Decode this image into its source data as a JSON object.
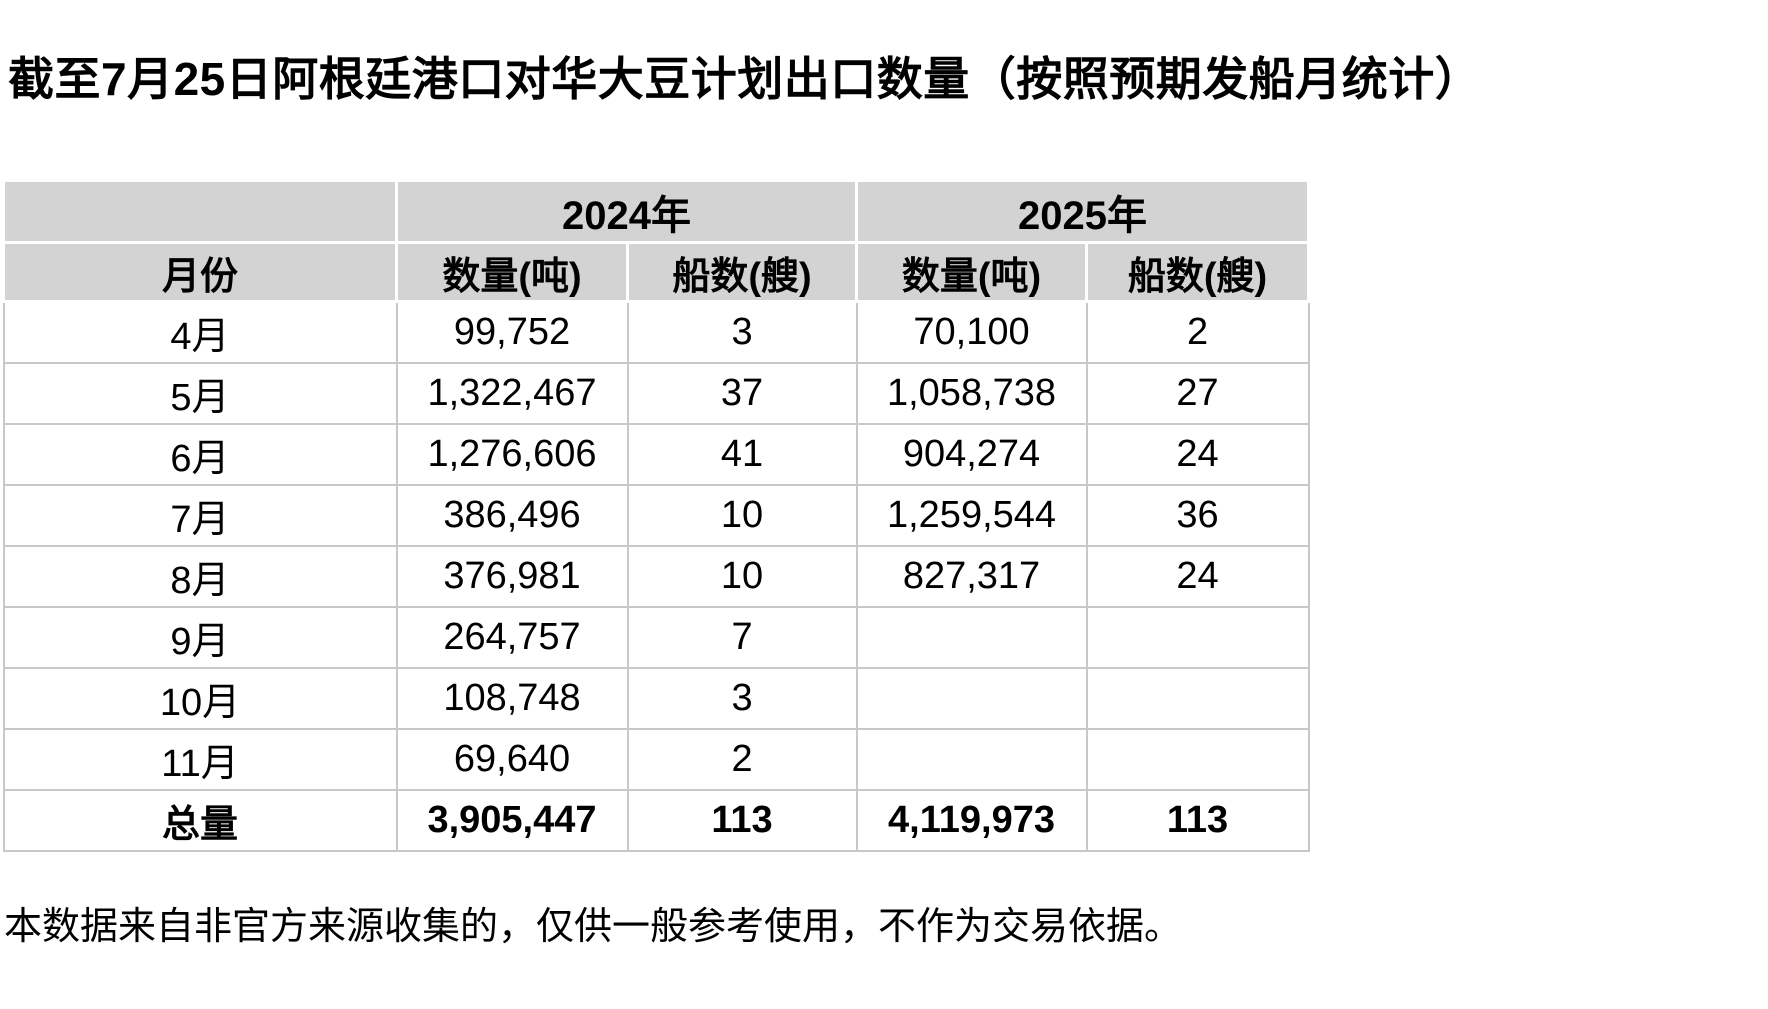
{
  "page": {
    "title": "截至7月25日阿根廷港口对华大豆计划出口数量（按照预期发船月统计）",
    "footnote": "本数据来自非官方来源收集的，仅供一般参考使用，不作为交易依据。"
  },
  "table": {
    "corner_label": "",
    "year_headers": {
      "y2024": "2024年",
      "y2025": "2025年"
    },
    "col_headers": {
      "month": "月份",
      "qty2024": "数量(吨)",
      "ships2024": "船数(艘)",
      "qty2025": "数量(吨)",
      "ships2025": "船数(艘)"
    },
    "rows": [
      {
        "month": "4月",
        "qty2024": "99,752",
        "ships2024": "3",
        "qty2025": "70,100",
        "ships2025": "2"
      },
      {
        "month": "5月",
        "qty2024": "1,322,467",
        "ships2024": "37",
        "qty2025": "1,058,738",
        "ships2025": "27"
      },
      {
        "month": "6月",
        "qty2024": "1,276,606",
        "ships2024": "41",
        "qty2025": "904,274",
        "ships2025": "24"
      },
      {
        "month": "7月",
        "qty2024": "386,496",
        "ships2024": "10",
        "qty2025": "1,259,544",
        "ships2025": "36"
      },
      {
        "month": "8月",
        "qty2024": "376,981",
        "ships2024": "10",
        "qty2025": "827,317",
        "ships2025": "24"
      },
      {
        "month": "9月",
        "qty2024": "264,757",
        "ships2024": "7",
        "qty2025": "",
        "ships2025": ""
      },
      {
        "month": "10月",
        "qty2024": "108,748",
        "ships2024": "3",
        "qty2025": "",
        "ships2025": ""
      },
      {
        "month": "11月",
        "qty2024": "69,640",
        "ships2024": "2",
        "qty2025": "",
        "ships2025": ""
      }
    ],
    "total": {
      "label": "总量",
      "qty2024": "3,905,447",
      "ships2024": "113",
      "qty2025": "4,119,973",
      "ships2025": "113"
    }
  },
  "colors": {
    "header_fill": "#d3d3d3",
    "grid_line": "#c8c8c8",
    "header_separator": "#ffffff",
    "text": "#000000",
    "background": "#ffffff"
  },
  "chart_data": {
    "type": "table",
    "title": "截至7月25日阿根廷港口对华大豆计划出口数量（按照预期发船月统计）",
    "column_groups": [
      "2024年",
      "2025年"
    ],
    "columns": [
      "月份",
      "2024年 数量(吨)",
      "2024年 船数(艘)",
      "2025年 数量(吨)",
      "2025年 船数(艘)"
    ],
    "rows": [
      [
        "4月",
        99752,
        3,
        70100,
        2
      ],
      [
        "5月",
        1322467,
        37,
        1058738,
        27
      ],
      [
        "6月",
        1276606,
        41,
        904274,
        24
      ],
      [
        "7月",
        386496,
        10,
        1259544,
        36
      ],
      [
        "8月",
        376981,
        10,
        827317,
        24
      ],
      [
        "9月",
        264757,
        7,
        null,
        null
      ],
      [
        "10月",
        108748,
        3,
        null,
        null
      ],
      [
        "11月",
        69640,
        2,
        null,
        null
      ],
      [
        "总量",
        3905447,
        113,
        4119973,
        113
      ]
    ],
    "footnote": "本数据来自非官方来源收集的，仅供一般参考使用，不作为交易依据。"
  }
}
